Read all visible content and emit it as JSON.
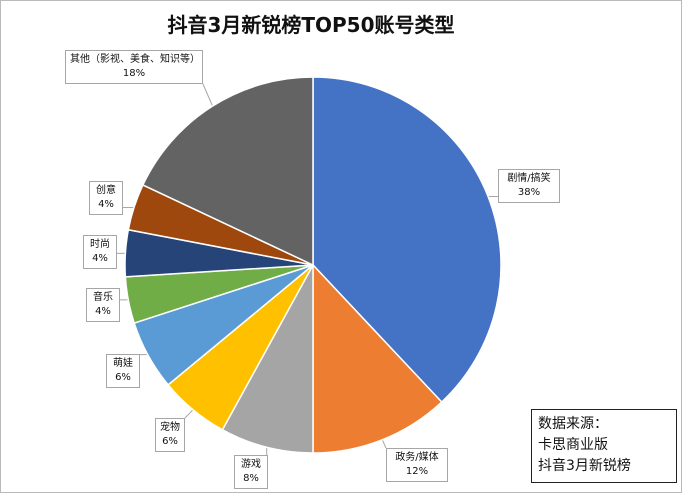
{
  "chart_data": {
    "type": "pie",
    "title": "抖音3月新锐榜TOP50账号类型",
    "start_angle_deg": 0,
    "direction": "clockwise",
    "slices": [
      {
        "label": "剧情/搞笑",
        "value": 38,
        "value_text": "38%",
        "color": "#4472c4"
      },
      {
        "label": "政务/媒体",
        "value": 12,
        "value_text": "12%",
        "color": "#ed7d31"
      },
      {
        "label": "游戏",
        "value": 8,
        "value_text": "8%",
        "color": "#a5a5a5"
      },
      {
        "label": "宠物",
        "value": 6,
        "value_text": "6%",
        "color": "#ffc000"
      },
      {
        "label": "萌娃",
        "value": 6,
        "value_text": "6%",
        "color": "#5b9bd5"
      },
      {
        "label": "音乐",
        "value": 4,
        "value_text": "4%",
        "color": "#70ad47"
      },
      {
        "label": "时尚",
        "value": 4,
        "value_text": "4%",
        "color": "#264478"
      },
      {
        "label": "创意",
        "value": 4,
        "value_text": "4%",
        "color": "#9e480e"
      },
      {
        "label": "其他（影视、美食、知识等）",
        "value": 18,
        "value_text": "18%",
        "color": "#636363"
      }
    ]
  },
  "source_box": {
    "lines": [
      "数据来源：",
      "卡思商业版",
      "抖音3月新锐榜"
    ]
  }
}
